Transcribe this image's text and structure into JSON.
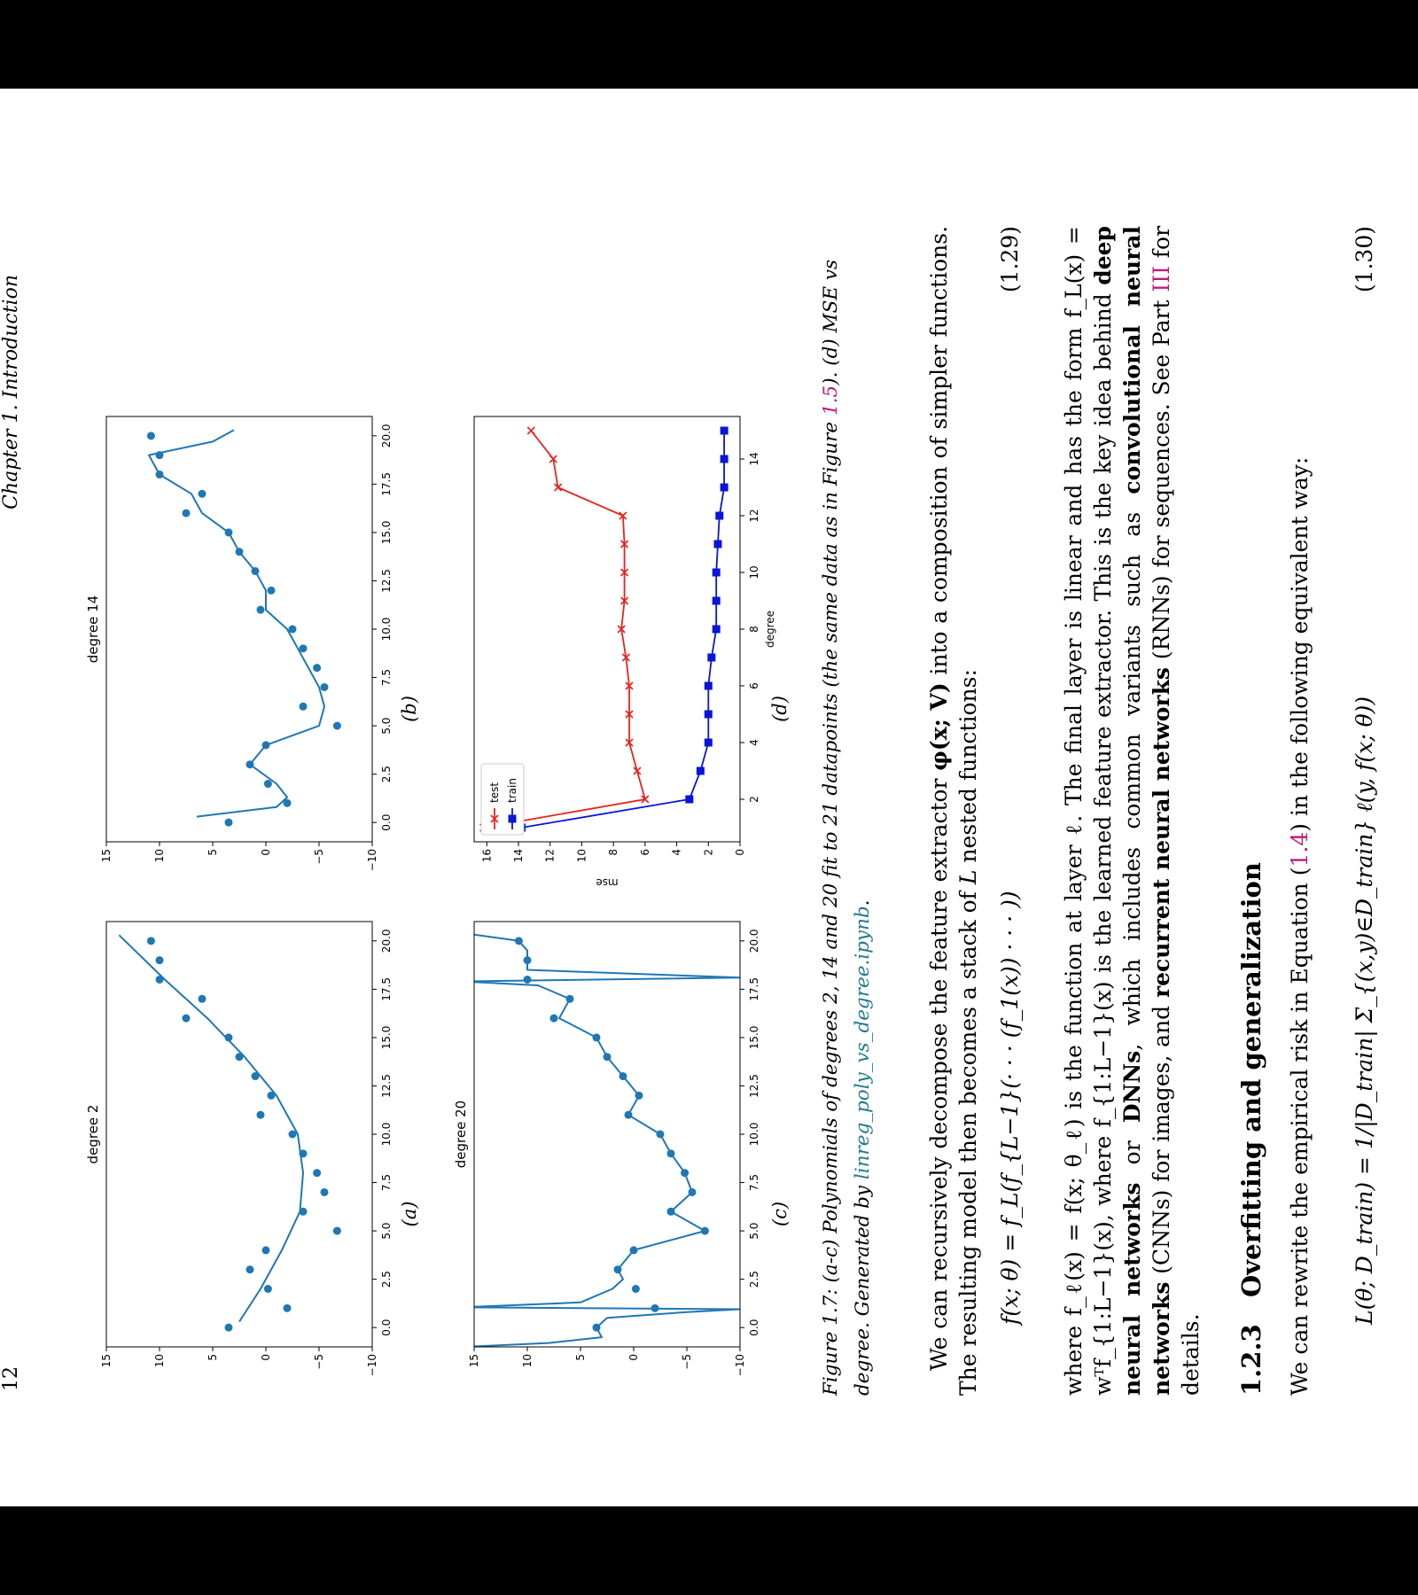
{
  "header": {
    "page_number": "12",
    "running_head": "Chapter 1. Introduction"
  },
  "figure": {
    "panels": [
      {
        "id": "a",
        "title": "degree 2",
        "label": "(a)"
      },
      {
        "id": "b",
        "title": "degree 14",
        "label": "(b)"
      },
      {
        "id": "c",
        "title": "degree 20",
        "label": "(c)"
      },
      {
        "id": "d",
        "title": "",
        "label": "(d)"
      }
    ],
    "caption": {
      "fig_label": "Figure 1.7:",
      "text_1": " (a-c) Polynomials of degrees 2, 14 and 20 fit to 21 datapoints (the same data as in Figure ",
      "ref": "1.5",
      "text_2": "). (d) MSE vs degree. Generated by ",
      "link": "linreg_poly_vs_degree.ipynb",
      "text_3": "."
    }
  },
  "chart_data": [
    {
      "type": "scatter",
      "title": "degree 2",
      "x_ticks": [
        "0.0",
        "2.5",
        "5.0",
        "7.5",
        "10.0",
        "12.5",
        "15.0",
        "17.5",
        "20.0"
      ],
      "y_ticks": [
        "−10",
        "−5",
        "0",
        "5",
        "10",
        "15"
      ],
      "xlim": [
        -1,
        21
      ],
      "ylim": [
        -10,
        15
      ],
      "points": [
        [
          0,
          3.5
        ],
        [
          1,
          -2
        ],
        [
          2,
          -0.2
        ],
        [
          3,
          1.5
        ],
        [
          4,
          0
        ],
        [
          5,
          -6.7
        ],
        [
          6,
          -3.5
        ],
        [
          7,
          -5.5
        ],
        [
          8,
          -4.8
        ],
        [
          9,
          -3.5
        ],
        [
          10,
          -2.5
        ],
        [
          11,
          0.5
        ],
        [
          12,
          -0.5
        ],
        [
          13,
          1
        ],
        [
          14,
          2.5
        ],
        [
          15,
          3.5
        ],
        [
          16,
          7.5
        ],
        [
          17,
          6
        ],
        [
          18,
          10
        ],
        [
          19,
          10
        ],
        [
          20,
          10.8
        ]
      ],
      "fit": [
        [
          0.3,
          2.5
        ],
        [
          2,
          0.5
        ],
        [
          4,
          -1.5
        ],
        [
          6,
          -3.2
        ],
        [
          8,
          -3.5
        ],
        [
          10,
          -3
        ],
        [
          12,
          -1
        ],
        [
          14,
          2
        ],
        [
          16,
          5.5
        ],
        [
          18,
          9.5
        ],
        [
          20.3,
          13.8
        ]
      ]
    },
    {
      "type": "scatter",
      "title": "degree 14",
      "x_ticks": [
        "0.0",
        "2.5",
        "5.0",
        "7.5",
        "10.0",
        "12.5",
        "15.0",
        "17.5",
        "20.0"
      ],
      "y_ticks": [
        "−10",
        "−5",
        "0",
        "5",
        "10",
        "15"
      ],
      "xlim": [
        -1,
        21
      ],
      "ylim": [
        -10,
        15
      ],
      "points": [
        [
          0,
          3.5
        ],
        [
          1,
          -2
        ],
        [
          2,
          -0.2
        ],
        [
          3,
          1.5
        ],
        [
          4,
          0
        ],
        [
          5,
          -6.7
        ],
        [
          6,
          -3.5
        ],
        [
          7,
          -5.5
        ],
        [
          8,
          -4.8
        ],
        [
          9,
          -3.5
        ],
        [
          10,
          -2.5
        ],
        [
          11,
          0.5
        ],
        [
          12,
          -0.5
        ],
        [
          13,
          1
        ],
        [
          14,
          2.5
        ],
        [
          15,
          3.5
        ],
        [
          16,
          7.5
        ],
        [
          17,
          6
        ],
        [
          18,
          10
        ],
        [
          19,
          10
        ],
        [
          20,
          10.8
        ]
      ],
      "fit": [
        [
          0.3,
          6.5
        ],
        [
          0.8,
          -1
        ],
        [
          1.3,
          -2
        ],
        [
          2,
          -1
        ],
        [
          3,
          1.5
        ],
        [
          4,
          0
        ],
        [
          5,
          -5
        ],
        [
          6,
          -5.5
        ],
        [
          7,
          -5
        ],
        [
          8,
          -4
        ],
        [
          9,
          -3
        ],
        [
          10,
          -2
        ],
        [
          11,
          0
        ],
        [
          12,
          0
        ],
        [
          13,
          1
        ],
        [
          14,
          2.5
        ],
        [
          15,
          3.5
        ],
        [
          16,
          6
        ],
        [
          17,
          7
        ],
        [
          18,
          10
        ],
        [
          19,
          11
        ],
        [
          19.7,
          5
        ],
        [
          20.3,
          3
        ]
      ]
    },
    {
      "type": "scatter",
      "title": "degree 20",
      "x_ticks": [
        "0.0",
        "2.5",
        "5.0",
        "7.5",
        "10.0",
        "12.5",
        "15.0",
        "17.5",
        "20.0"
      ],
      "y_ticks": [
        "−10",
        "−5",
        "0",
        "5",
        "10",
        "15"
      ],
      "xlim": [
        -1,
        21
      ],
      "ylim": [
        -10,
        15
      ],
      "points": [
        [
          0,
          3.5
        ],
        [
          1,
          -2
        ],
        [
          2,
          -0.2
        ],
        [
          3,
          1.5
        ],
        [
          4,
          0
        ],
        [
          5,
          -6.7
        ],
        [
          6,
          -3.5
        ],
        [
          7,
          -5.5
        ],
        [
          8,
          -4.8
        ],
        [
          9,
          -3.5
        ],
        [
          10,
          -2.5
        ],
        [
          11,
          0.5
        ],
        [
          12,
          -0.5
        ],
        [
          13,
          1
        ],
        [
          14,
          2.5
        ],
        [
          15,
          3.5
        ],
        [
          16,
          7.5
        ],
        [
          17,
          6
        ],
        [
          18,
          10
        ],
        [
          19,
          10
        ],
        [
          20,
          10.8
        ]
      ],
      "fit": [
        [
          -1,
          16
        ],
        [
          -0.8,
          8
        ],
        [
          -0.5,
          3
        ],
        [
          0,
          3.5
        ],
        [
          0.5,
          2.5
        ],
        [
          0.8,
          -5
        ],
        [
          0.95,
          -10
        ],
        [
          1.05,
          16
        ],
        [
          1.3,
          5
        ],
        [
          2,
          2
        ],
        [
          2.5,
          1
        ],
        [
          3,
          1.5
        ],
        [
          4,
          0
        ],
        [
          5,
          -6.7
        ],
        [
          6,
          -3.5
        ],
        [
          7,
          -5.5
        ],
        [
          8,
          -4.8
        ],
        [
          9,
          -3.5
        ],
        [
          10,
          -2.5
        ],
        [
          11,
          0.5
        ],
        [
          12,
          -0.5
        ],
        [
          13,
          1
        ],
        [
          14,
          2.5
        ],
        [
          15,
          3.5
        ],
        [
          16,
          7
        ],
        [
          17,
          6
        ],
        [
          17.7,
          9
        ],
        [
          17.9,
          16
        ],
        [
          18.1,
          -10
        ],
        [
          18.5,
          10
        ],
        [
          19,
          10
        ],
        [
          19.5,
          10
        ],
        [
          20,
          10.8
        ],
        [
          20.4,
          16
        ]
      ]
    },
    {
      "type": "line",
      "title": "",
      "xlabel": "degree",
      "ylabel": "mse",
      "x_ticks": [
        "2",
        "4",
        "6",
        "8",
        "10",
        "12",
        "14"
      ],
      "y_ticks": [
        "0",
        "2",
        "4",
        "6",
        "8",
        "10",
        "12",
        "14",
        "16"
      ],
      "xlim": [
        0.5,
        15.5
      ],
      "ylim": [
        0,
        16.8
      ],
      "legend": "top-left",
      "series": [
        {
          "name": "test",
          "color": "#e8221f",
          "marker": "x",
          "x": [
            1,
            2,
            3,
            4,
            5,
            6,
            7,
            8,
            9,
            10,
            11,
            12,
            13,
            14,
            15
          ],
          "values": [
            16.2,
            6.0,
            6.5,
            7.0,
            7.0,
            7.0,
            7.2,
            7.5,
            7.3,
            7.3,
            7.3,
            7.4,
            11.5,
            11.8,
            13.2
          ]
        },
        {
          "name": "train",
          "color": "#0a14d8",
          "marker": "s",
          "x": [
            1,
            2,
            3,
            4,
            5,
            6,
            7,
            8,
            9,
            10,
            11,
            12,
            13,
            14,
            15
          ],
          "values": [
            13.8,
            3.2,
            2.5,
            2.0,
            2.0,
            2.0,
            1.8,
            1.5,
            1.5,
            1.5,
            1.4,
            1.3,
            1.0,
            1.0,
            1.0
          ]
        }
      ]
    }
  ],
  "text": {
    "para1_a": "We can recursively decompose the feature extractor ",
    "para1_b": "φ(x; V)",
    "para1_c": " into a composition of simpler functions. The resulting model then becomes a stack of ",
    "para1_d": "L",
    "para1_e": " nested functions:",
    "eq1": "f(x; θ) = f_L(f_{L−1}(· · · (f_1(x)) · · · ))",
    "eq1_num": "(1.29)",
    "para2_a": "where f_ℓ(x) = f(x; θ_ℓ) is the function at layer ℓ. The final layer is linear and has the form f_L(x) = wᵀf_{1:L−1}(x), where f_{1:L−1}(x) is the learned feature extractor. This is the key idea behind ",
    "para2_b1": "deep neural networks",
    "para2_c": " or ",
    "para2_b2": "DNNs",
    "para2_d": ", which includes common variants such as ",
    "para2_b3": "convolutional neural networks",
    "para2_e": " (CNNs) for images, and ",
    "para2_b4": "recurrent neural networks",
    "para2_f": " (RNNs) for sequences. See Part ",
    "para2_ref": "III",
    "para2_g": " for details.",
    "section_number": "1.2.3",
    "section_title": "Overfitting and generalization",
    "para3_a": "We can rewrite the empirical risk in Equation (",
    "para3_ref": "1.4",
    "para3_b": ") in the following equivalent way:",
    "eq2": "L(θ; D_train) = 1/|D_train| Σ_{(x,y)∈D_train} ℓ(y, f(x; θ))",
    "eq2_num": "(1.30)"
  }
}
